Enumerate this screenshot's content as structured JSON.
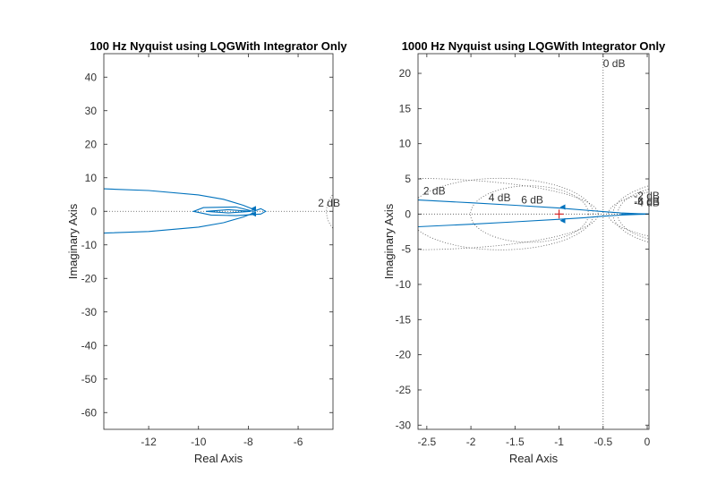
{
  "chart_data": [
    {
      "type": "line",
      "title": "100 Hz Nyquist using LQGWith Integrator Only",
      "xlabel": "Real Axis",
      "ylabel": "Imaginary Axis",
      "xlim": [
        -13.8,
        -4.6
      ],
      "ylim": [
        -65,
        47
      ],
      "xticks": [
        -12,
        -10,
        -8,
        -6
      ],
      "yticks": [
        40,
        30,
        20,
        10,
        0,
        -10,
        -20,
        -30,
        -40,
        -50,
        -60
      ],
      "grid": "on",
      "series": [
        {
          "color": "#0072BD",
          "x": [
            -13.8,
            -12,
            -10,
            -9,
            -8.2,
            -7.9,
            -7.8
          ],
          "y": [
            6.7,
            6.2,
            4.9,
            3.6,
            1.8,
            0.9,
            0.3
          ]
        },
        {
          "color": "#0072BD",
          "x": [
            -13.8,
            -12,
            -10,
            -9,
            -8.2,
            -7.9,
            -7.8
          ],
          "y": [
            -6.5,
            -6.0,
            -4.7,
            -3.4,
            -1.7,
            -0.8,
            -0.3
          ]
        },
        {
          "color": "#0072BD",
          "x": [
            -7.8,
            -7.5,
            -7.3,
            -7.5,
            -8.5,
            -9.5,
            -10.2,
            -9.8,
            -8.5,
            -7.8
          ],
          "y": [
            0,
            0.8,
            0,
            -0.8,
            -1.3,
            -1.1,
            0,
            1.1,
            1.3,
            0
          ]
        },
        {
          "color": "#0072BD",
          "x": [
            -7.9,
            -8.8,
            -9.7,
            -8.8,
            -7.9
          ],
          "y": [
            0,
            0.5,
            0,
            -0.5,
            0
          ]
        }
      ],
      "markers": [
        {
          "x": -7.8,
          "y": 0.8
        },
        {
          "x": -7.8,
          "y": -0.8
        }
      ],
      "annotations": [
        {
          "text": "2 dB",
          "x": -5.2,
          "y": 1.4
        }
      ]
    },
    {
      "type": "line",
      "title": "1000 Hz Nyquist using LQGWith Integrator Only",
      "xlabel": "Real Axis",
      "ylabel": "Imaginary Axis",
      "xlim": [
        -2.6,
        0.02
      ],
      "ylim": [
        -30.6,
        22.8
      ],
      "xticks": [
        -2.5,
        -2,
        -1.5,
        -1,
        -0.5,
        0
      ],
      "yticks": [
        20,
        15,
        10,
        5,
        0,
        -5,
        -10,
        -15,
        -20,
        -25,
        -30
      ],
      "grid": "on",
      "series": [
        {
          "color": "#0072BD",
          "x": [
            -2.6,
            -2,
            -1.5,
            -1,
            -0.7,
            -0.5,
            -0.3,
            -0.1,
            0.02
          ],
          "y": [
            2.0,
            1.6,
            1.25,
            0.85,
            0.55,
            0.35,
            0.15,
            0.05,
            0.02
          ]
        },
        {
          "color": "#0072BD",
          "x": [
            -2.6,
            -2,
            -1.5,
            -1,
            -0.7,
            -0.5,
            -0.3,
            -0.1,
            0.02
          ],
          "y": [
            -1.8,
            -1.45,
            -1.1,
            -0.75,
            -0.5,
            -0.3,
            -0.15,
            -0.05,
            -0.02
          ]
        },
        {
          "color": "#0072BD",
          "x": [
            -0.3,
            0.02
          ],
          "y": [
            0,
            0
          ]
        }
      ],
      "markers": [
        {
          "x": -0.96,
          "y": 1.0
        },
        {
          "x": -0.96,
          "y": -0.95
        }
      ],
      "critical_point": {
        "x": -1,
        "y": 0,
        "color": "#D62728"
      },
      "annotations": [
        {
          "text": "0 dB",
          "x": -0.5,
          "y": 20.9
        },
        {
          "text": "2 dB",
          "x": -2.54,
          "y": 2.8
        },
        {
          "text": "4 dB",
          "x": -1.8,
          "y": 1.8
        },
        {
          "text": "6 dB",
          "x": -1.43,
          "y": 1.5
        },
        {
          "text": "-2 dB",
          "x": -0.15,
          "y": 2.1
        },
        {
          "text": "-6 dB",
          "x": -0.15,
          "y": 1.3
        },
        {
          "text": "-4 dB",
          "x": -0.15,
          "y": 1.1
        }
      ]
    }
  ]
}
